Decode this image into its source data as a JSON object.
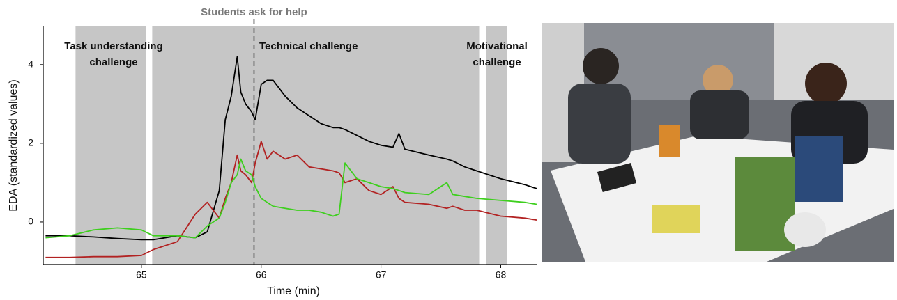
{
  "chart_data": {
    "type": "line",
    "xlabel": "Time (min)",
    "ylabel": "EDA (standardized values)",
    "xlim": [
      64.18,
      68.3
    ],
    "ylim": [
      -1.08,
      4.97
    ],
    "xticks": [
      65,
      66,
      67,
      68
    ],
    "yticks": [
      0,
      2,
      4
    ],
    "regions": [
      {
        "start": 64.45,
        "end": 65.04,
        "label": [
          "Task understanding",
          "challenge"
        ]
      },
      {
        "start": 65.09,
        "end": 67.82,
        "label": [
          "Technical challenge"
        ]
      },
      {
        "start": 67.88,
        "end": 68.05,
        "label": [
          "Motivational",
          "challenge"
        ]
      }
    ],
    "region_color": "#c6c6c6",
    "marker": {
      "x": 65.94,
      "label": "Students ask for help"
    },
    "x": [
      64.2,
      64.4,
      64.6,
      64.8,
      65.0,
      65.1,
      65.3,
      65.45,
      65.55,
      65.65,
      65.7,
      65.75,
      65.8,
      65.83,
      65.87,
      65.92,
      65.95,
      66.0,
      66.05,
      66.1,
      66.2,
      66.3,
      66.4,
      66.5,
      66.6,
      66.65,
      66.7,
      66.8,
      66.9,
      67.0,
      67.1,
      67.15,
      67.2,
      67.4,
      67.55,
      67.6,
      67.7,
      67.8,
      68.0,
      68.2,
      68.3
    ],
    "series": [
      {
        "color": "#000000",
        "values": [
          -0.35,
          -0.35,
          -0.38,
          -0.42,
          -0.45,
          -0.45,
          -0.35,
          -0.4,
          -0.25,
          0.8,
          2.6,
          3.2,
          4.2,
          3.3,
          3.0,
          2.8,
          2.6,
          3.5,
          3.6,
          3.6,
          3.2,
          2.9,
          2.7,
          2.5,
          2.4,
          2.4,
          2.35,
          2.2,
          2.05,
          1.95,
          1.9,
          2.25,
          1.85,
          1.7,
          1.6,
          1.55,
          1.4,
          1.3,
          1.1,
          0.95,
          0.85
        ]
      },
      {
        "color": "#b22222",
        "values": [
          -0.9,
          -0.9,
          -0.88,
          -0.88,
          -0.85,
          -0.7,
          -0.5,
          0.2,
          0.5,
          0.1,
          0.6,
          1.0,
          1.7,
          1.3,
          1.2,
          1.0,
          1.5,
          2.05,
          1.6,
          1.8,
          1.6,
          1.7,
          1.4,
          1.35,
          1.3,
          1.25,
          1.0,
          1.1,
          0.8,
          0.7,
          0.9,
          0.6,
          0.5,
          0.45,
          0.35,
          0.4,
          0.3,
          0.3,
          0.15,
          0.1,
          0.05
        ]
      },
      {
        "color": "#3ecf1e",
        "values": [
          -0.4,
          -0.35,
          -0.2,
          -0.15,
          -0.2,
          -0.35,
          -0.35,
          -0.4,
          -0.1,
          0.1,
          0.5,
          1.0,
          1.2,
          1.6,
          1.3,
          1.2,
          0.9,
          0.6,
          0.5,
          0.4,
          0.35,
          0.3,
          0.3,
          0.25,
          0.15,
          0.2,
          1.5,
          1.1,
          1.0,
          0.9,
          0.85,
          0.8,
          0.75,
          0.7,
          1.0,
          0.7,
          0.65,
          0.6,
          0.55,
          0.5,
          0.45
        ]
      }
    ]
  }
}
